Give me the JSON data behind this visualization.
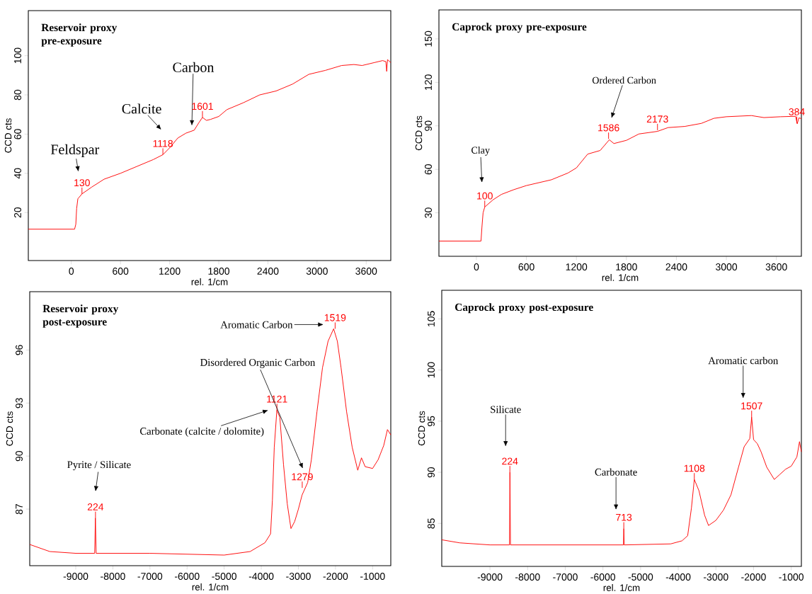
{
  "chart_data": [
    {
      "type": "line",
      "title": "Reservoir proxy pre-exposure",
      "xlabel": "rel. 1/cm",
      "ylabel": "CCD cts",
      "color": "#ff0000",
      "marker": "none",
      "xlim": [
        -525,
        3900
      ],
      "ylim": [
        -4.5,
        123
      ],
      "xticks": [
        0,
        600,
        1200,
        1800,
        2400,
        3000,
        3600
      ],
      "yticks": [
        20,
        40,
        60,
        80,
        100
      ],
      "x": [
        -525,
        40,
        55,
        65,
        80,
        130,
        250,
        400,
        600,
        800,
        1000,
        1118,
        1200,
        1300,
        1400,
        1500,
        1560,
        1601,
        1650,
        1700,
        1800,
        1900,
        2100,
        2300,
        2500,
        2700,
        2900,
        3100,
        3300,
        3450,
        3550,
        3700,
        3800,
        3840,
        3850,
        3860,
        3900
      ],
      "values": [
        11.5,
        11.5,
        14,
        22,
        27,
        29.5,
        33,
        37,
        40,
        43.5,
        47,
        49.5,
        53,
        58,
        60.5,
        62,
        66,
        68.5,
        67,
        67.5,
        69,
        72.5,
        76,
        80,
        82,
        85.5,
        90.5,
        92.5,
        95,
        95.5,
        95,
        96.5,
        97.5,
        97,
        92,
        98,
        96.5
      ],
      "annotations": [
        "Feldspar",
        {
          "text": "130",
          "x": 130,
          "y": 29.5
        },
        "Calcite",
        {
          "text": "1118",
          "x": 1118,
          "y": 49.5
        },
        "Carbon",
        {
          "text": "1601",
          "x": 1601,
          "y": 68.5
        }
      ]
    },
    {
      "type": "line",
      "title": "Caprock proxy pre-exposure",
      "xlabel": "rel. 1/cm",
      "ylabel": "CCD cts",
      "color": "#ff0000",
      "marker": "none",
      "xlim": [
        -450,
        3900
      ],
      "ylim": [
        0,
        170
      ],
      "xticks": [
        0,
        600,
        1200,
        1800,
        2400,
        3000,
        3600
      ],
      "yticks": [
        30,
        60,
        90,
        120,
        150
      ],
      "x": [
        -450,
        55,
        66,
        80,
        100,
        200,
        300,
        450,
        600,
        900,
        1100,
        1200,
        1335,
        1485,
        1595,
        1650,
        1800,
        1950,
        2173,
        2300,
        2500,
        2700,
        2850,
        3000,
        3300,
        3450,
        3650,
        3830,
        3850,
        3870,
        3900
      ],
      "values": [
        10.5,
        10.5,
        20,
        30,
        34,
        39,
        42.7,
        46,
        48.8,
        52.8,
        57.5,
        61,
        70.5,
        73,
        80.4,
        77.8,
        80,
        84.4,
        86.2,
        88.8,
        89.6,
        91.7,
        95.2,
        96.3,
        97.1,
        95.7,
        96.3,
        96.6,
        91.4,
        95.5,
        95
      ],
      "annotations": [
        "Clay",
        {
          "text": "100",
          "x": 100,
          "y": 34
        },
        "Ordered Carbon",
        {
          "text": "1586",
          "x": 1586,
          "y": 81
        },
        {
          "text": "2173",
          "x": 2173,
          "y": 87
        },
        {
          "text": "384",
          "x": 3845,
          "y": 92
        }
      ]
    },
    {
      "type": "line",
      "title": "Reservoir proxy post-exposure",
      "xlabel": "rel. 1/cm",
      "ylabel": "CCD cts",
      "color": "#ff0000",
      "marker": "none",
      "xlim": [
        -10240,
        -510
      ],
      "ylim": [
        83.8,
        99.3
      ],
      "xticks": [
        -9000,
        -8000,
        -7000,
        -6000,
        -5000,
        -4000,
        -3000,
        -2000,
        -1000
      ],
      "yticks": [
        87,
        90,
        93,
        96
      ],
      "x": [
        -10240,
        -9700,
        -9000,
        -8490,
        -8470,
        -8450,
        -7000,
        -5000,
        -4300,
        -3900,
        -3750,
        -3700,
        -3650,
        -3580,
        -3500,
        -3400,
        -3300,
        -3200,
        -3100,
        -3000,
        -2900,
        -2750,
        -2650,
        -2500,
        -2350,
        -2200,
        -2050,
        -1950,
        -1850,
        -1700,
        -1550,
        -1400,
        -1300,
        -1200,
        -1000,
        -850,
        -700,
        -600,
        -510
      ],
      "values": [
        85.0,
        84.6,
        84.5,
        84.5,
        86.5,
        84.5,
        84.5,
        84.4,
        84.6,
        85.1,
        85.6,
        87.5,
        90.5,
        92.6,
        92.2,
        89.5,
        87.3,
        85.9,
        86.3,
        87.0,
        87.8,
        88.5,
        89.8,
        92.5,
        95.0,
        96.5,
        97.2,
        96.5,
        95.0,
        92.5,
        90.5,
        89.2,
        89.9,
        89.4,
        89.3,
        89.8,
        90.6,
        91.5,
        91.2
      ],
      "annotations": [
        "Pyrite / Silicate",
        {
          "text": "224",
          "x": -8468,
          "y": 86.5
        },
        "Carbonate (calcite / dolomite)",
        {
          "text": "1121",
          "x": -3578,
          "y": 92.6
        },
        "Disordered Organic Carbon",
        {
          "text": "1279",
          "x": -2896,
          "y": 88.2
        },
        "Aromatic Carbon",
        {
          "text": "1519",
          "x": -2010,
          "y": 97.2
        }
      ]
    },
    {
      "type": "line",
      "title": "Caprock proxy post-exposure",
      "xlabel": "rel. 1/cm",
      "ylabel": "CCD cts",
      "color": "#ff0000",
      "marker": "none",
      "xlim": [
        -10280,
        -730
      ],
      "ylim": [
        80.8,
        107.8
      ],
      "xticks": [
        -9000,
        -8000,
        -7000,
        -6000,
        -5000,
        -4000,
        -3000,
        -2000,
        -1000
      ],
      "yticks": [
        85,
        90,
        95,
        100,
        105
      ],
      "x": [
        -10280,
        -9800,
        -9000,
        -8480,
        -8470,
        -8455,
        -7000,
        -5455,
        -5446,
        -5435,
        -4200,
        -3900,
        -3750,
        -3650,
        -3573,
        -3450,
        -3300,
        -3196,
        -3000,
        -2800,
        -2600,
        -2400,
        -2250,
        -2100,
        -2051,
        -2000,
        -1900,
        -1800,
        -1650,
        -1450,
        -1300,
        -1150,
        -1000,
        -850,
        -780,
        -730
      ],
      "values": [
        83.4,
        83.1,
        82.9,
        82.9,
        90.0,
        82.9,
        82.9,
        82.9,
        84.5,
        82.9,
        83.0,
        83.3,
        83.8,
        86.5,
        89.3,
        88.2,
        85.8,
        84.8,
        85.3,
        86.3,
        87.8,
        90.5,
        92.5,
        93.3,
        95.4,
        93.2,
        92.8,
        92.0,
        90.5,
        89.3,
        89.8,
        90.3,
        90.6,
        91.5,
        93.0,
        92.0
      ],
      "annotations": [
        "Silicate",
        {
          "text": "224",
          "x": -8471,
          "y": 90.0
        },
        "Carbonate",
        {
          "text": "713",
          "x": -5446,
          "y": 84.5
        },
        {
          "text": "1108",
          "x": -3573,
          "y": 89.3
        },
        "Aromatic carbon",
        {
          "text": "1507",
          "x": -2051,
          "y": 95.4
        }
      ]
    }
  ]
}
